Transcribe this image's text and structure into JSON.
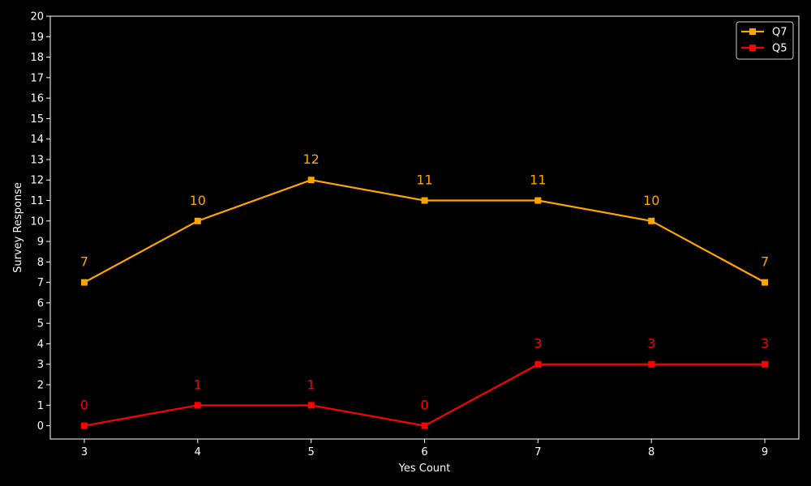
{
  "chart_data": {
    "type": "line",
    "xlabel": "Yes Count",
    "ylabel": "Survey Response",
    "x": [
      3,
      4,
      5,
      6,
      7,
      8,
      9
    ],
    "xlim": [
      2.7,
      9.3
    ],
    "ylim": [
      -0.65,
      20
    ],
    "x_ticks": [
      3,
      4,
      5,
      6,
      7,
      8,
      9
    ],
    "y_ticks": [
      0,
      1,
      2,
      3,
      4,
      5,
      6,
      7,
      8,
      9,
      10,
      11,
      12,
      13,
      14,
      15,
      16,
      17,
      18,
      19,
      20
    ],
    "grid": false,
    "legend_position": "top-right",
    "background": "#000000",
    "axis_color": "#ffffff",
    "series": [
      {
        "name": "Q7",
        "color": "#ffa500",
        "marker": "square",
        "values": [
          7,
          10,
          12,
          11,
          11,
          10,
          7
        ]
      },
      {
        "name": "Q5",
        "color": "#ff0000",
        "marker": "square",
        "values": [
          0,
          1,
          1,
          0,
          3,
          3,
          3
        ]
      }
    ]
  }
}
